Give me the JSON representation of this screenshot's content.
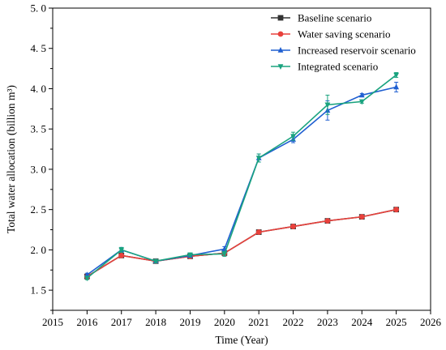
{
  "chart_data": {
    "type": "line",
    "title": "",
    "xlabel": "Time (Year)",
    "ylabel": "Total water allocation (billion m³)",
    "xlim": [
      2015,
      2026
    ],
    "ylim": [
      1.25,
      5.0
    ],
    "xticks": [
      2015,
      2016,
      2017,
      2018,
      2019,
      2020,
      2021,
      2022,
      2023,
      2024,
      2025,
      2026
    ],
    "yticks": [
      1.5,
      2.0,
      2.5,
      3.0,
      3.5,
      4.0,
      4.5,
      5.0
    ],
    "ytick_labels": [
      "1. 5",
      "2. 0",
      "2. 5",
      "3. 0",
      "3. 5",
      "4. 0",
      "4. 5",
      "5. 0"
    ],
    "grid": false,
    "legend_position": "top-right",
    "x": [
      2016,
      2017,
      2018,
      2019,
      2020,
      2021,
      2022,
      2023,
      2024,
      2025
    ],
    "series": [
      {
        "name": "Baseline scenario",
        "color": "#333333",
        "marker": "square",
        "values": [
          1.67,
          1.93,
          1.86,
          1.92,
          1.96,
          2.22,
          2.29,
          2.36,
          2.41,
          2.5
        ],
        "errors": [
          0.02,
          0.02,
          0.01,
          0.01,
          0.01,
          0.01,
          0.01,
          0.01,
          0.01,
          0.01
        ]
      },
      {
        "name": "Water saving scenario",
        "color": "#e8413c",
        "marker": "circle",
        "values": [
          1.67,
          1.93,
          1.86,
          1.92,
          1.96,
          2.22,
          2.29,
          2.36,
          2.41,
          2.5
        ],
        "errors": [
          0.02,
          0.02,
          0.01,
          0.01,
          0.01,
          0.01,
          0.01,
          0.01,
          0.01,
          0.01
        ]
      },
      {
        "name": "Increased reservoir scenario",
        "color": "#1f5fd1",
        "marker": "triangle-up",
        "values": [
          1.69,
          2.0,
          1.86,
          1.93,
          2.01,
          3.14,
          3.37,
          3.73,
          3.92,
          4.02
        ],
        "errors": [
          0.02,
          0.03,
          0.02,
          0.02,
          0.03,
          0.05,
          0.04,
          0.12,
          0.02,
          0.06
        ]
      },
      {
        "name": "Integrated scenario",
        "color": "#1aa37f",
        "marker": "triangle-down",
        "values": [
          1.65,
          2.0,
          1.86,
          1.94,
          1.95,
          3.14,
          3.41,
          3.8,
          3.84,
          4.17
        ],
        "errors": [
          0.02,
          0.03,
          0.02,
          0.02,
          0.03,
          0.05,
          0.05,
          0.12,
          0.02,
          0.03
        ]
      }
    ]
  }
}
